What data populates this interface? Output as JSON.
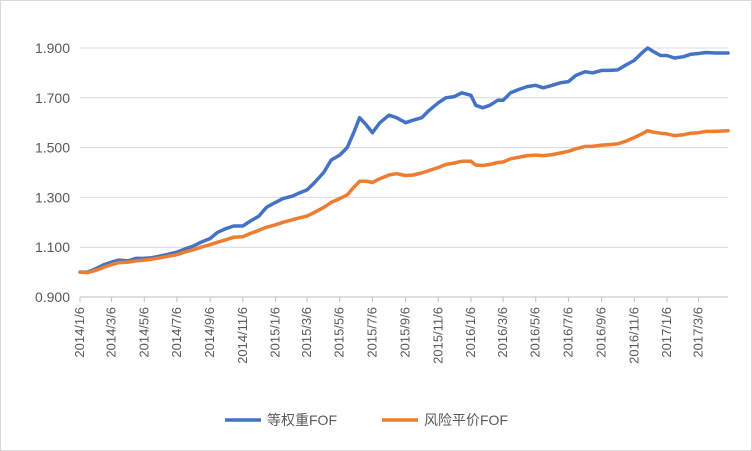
{
  "chart_data": {
    "type": "line",
    "title": "",
    "xlabel": "",
    "ylabel": "",
    "ylim": [
      0.9,
      1.9
    ],
    "y_ticks": [
      "0.900",
      "1.100",
      "1.300",
      "1.500",
      "1.700",
      "1.900"
    ],
    "y_tick_values": [
      0.9,
      1.1,
      1.3,
      1.5,
      1.7,
      1.9
    ],
    "x_tick_labels": [
      "2014/1/6",
      "2014/3/6",
      "2014/5/6",
      "2014/7/6",
      "2014/9/6",
      "2014/11/6",
      "2015/1/6",
      "2015/3/6",
      "2015/5/6",
      "2015/7/6",
      "2015/9/6",
      "2015/11/6",
      "2016/1/6",
      "2016/3/6",
      "2016/5/6",
      "2016/7/6",
      "2016/9/6",
      "2016/11/6",
      "2017/1/6",
      "2017/3/6"
    ],
    "x_range": [
      "2014/1/6",
      "2017/4/30"
    ],
    "grid": "horizontal",
    "legend_position": "bottom",
    "series": [
      {
        "name": "等权重FOF",
        "color": "#4472C4",
        "points": [
          [
            "2014/1/6",
            1.0
          ],
          [
            "2014/1/20",
            1.0
          ],
          [
            "2014/2/6",
            1.015
          ],
          [
            "2014/2/20",
            1.03
          ],
          [
            "2014/3/6",
            1.04
          ],
          [
            "2014/3/20",
            1.048
          ],
          [
            "2014/4/6",
            1.045
          ],
          [
            "2014/4/20",
            1.055
          ],
          [
            "2014/5/6",
            1.055
          ],
          [
            "2014/5/20",
            1.058
          ],
          [
            "2014/6/6",
            1.065
          ],
          [
            "2014/6/20",
            1.072
          ],
          [
            "2014/7/6",
            1.08
          ],
          [
            "2014/7/20",
            1.092
          ],
          [
            "2014/8/6",
            1.105
          ],
          [
            "2014/8/20",
            1.12
          ],
          [
            "2014/9/6",
            1.135
          ],
          [
            "2014/9/20",
            1.16
          ],
          [
            "2014/10/6",
            1.175
          ],
          [
            "2014/10/20",
            1.185
          ],
          [
            "2014/11/6",
            1.185
          ],
          [
            "2014/11/20",
            1.205
          ],
          [
            "2014/12/6",
            1.225
          ],
          [
            "2014/12/20",
            1.26
          ],
          [
            "2015/1/6",
            1.28
          ],
          [
            "2015/1/20",
            1.295
          ],
          [
            "2015/2/6",
            1.305
          ],
          [
            "2015/2/20",
            1.318
          ],
          [
            "2015/3/6",
            1.33
          ],
          [
            "2015/3/20",
            1.36
          ],
          [
            "2015/4/6",
            1.4
          ],
          [
            "2015/4/20",
            1.45
          ],
          [
            "2015/5/6",
            1.47
          ],
          [
            "2015/5/20",
            1.5
          ],
          [
            "2015/6/1",
            1.56
          ],
          [
            "2015/6/12",
            1.62
          ],
          [
            "2015/6/25",
            1.59
          ],
          [
            "2015/7/6",
            1.56
          ],
          [
            "2015/7/20",
            1.6
          ],
          [
            "2015/8/6",
            1.63
          ],
          [
            "2015/8/20",
            1.62
          ],
          [
            "2015/9/6",
            1.6
          ],
          [
            "2015/9/20",
            1.61
          ],
          [
            "2015/10/6",
            1.62
          ],
          [
            "2015/10/20",
            1.65
          ],
          [
            "2015/11/6",
            1.68
          ],
          [
            "2015/11/20",
            1.7
          ],
          [
            "2015/12/6",
            1.705
          ],
          [
            "2015/12/20",
            1.72
          ],
          [
            "2016/1/6",
            1.71
          ],
          [
            "2016/1/15",
            1.67
          ],
          [
            "2016/1/28",
            1.66
          ],
          [
            "2016/2/10",
            1.67
          ],
          [
            "2016/2/25",
            1.69
          ],
          [
            "2016/3/6",
            1.69
          ],
          [
            "2016/3/20",
            1.72
          ],
          [
            "2016/4/6",
            1.735
          ],
          [
            "2016/4/20",
            1.745
          ],
          [
            "2016/5/6",
            1.75
          ],
          [
            "2016/5/20",
            1.74
          ],
          [
            "2016/6/6",
            1.75
          ],
          [
            "2016/6/20",
            1.76
          ],
          [
            "2016/7/6",
            1.765
          ],
          [
            "2016/7/20",
            1.79
          ],
          [
            "2016/8/6",
            1.805
          ],
          [
            "2016/8/20",
            1.8
          ],
          [
            "2016/9/6",
            1.81
          ],
          [
            "2016/9/20",
            1.81
          ],
          [
            "2016/10/6",
            1.812
          ],
          [
            "2016/10/20",
            1.83
          ],
          [
            "2016/11/6",
            1.85
          ],
          [
            "2016/11/20",
            1.88
          ],
          [
            "2016/12/1",
            1.9
          ],
          [
            "2016/12/12",
            1.885
          ],
          [
            "2016/12/25",
            1.87
          ],
          [
            "2017/1/6",
            1.87
          ],
          [
            "2017/1/20",
            1.86
          ],
          [
            "2017/2/6",
            1.865
          ],
          [
            "2017/2/20",
            1.875
          ],
          [
            "2017/3/6",
            1.878
          ],
          [
            "2017/3/20",
            1.882
          ],
          [
            "2017/4/6",
            1.88
          ],
          [
            "2017/4/30",
            1.88
          ]
        ]
      },
      {
        "name": "风险平价FOF",
        "color": "#ED7D31",
        "points": [
          [
            "2014/1/6",
            1.0
          ],
          [
            "2014/1/20",
            0.998
          ],
          [
            "2014/2/6",
            1.008
          ],
          [
            "2014/2/20",
            1.02
          ],
          [
            "2014/3/6",
            1.03
          ],
          [
            "2014/3/20",
            1.038
          ],
          [
            "2014/4/6",
            1.04
          ],
          [
            "2014/4/20",
            1.045
          ],
          [
            "2014/5/6",
            1.048
          ],
          [
            "2014/5/20",
            1.052
          ],
          [
            "2014/6/6",
            1.058
          ],
          [
            "2014/6/20",
            1.064
          ],
          [
            "2014/7/6",
            1.07
          ],
          [
            "2014/7/20",
            1.08
          ],
          [
            "2014/8/6",
            1.09
          ],
          [
            "2014/8/20",
            1.1
          ],
          [
            "2014/9/6",
            1.11
          ],
          [
            "2014/9/20",
            1.12
          ],
          [
            "2014/10/6",
            1.13
          ],
          [
            "2014/10/20",
            1.14
          ],
          [
            "2014/11/6",
            1.142
          ],
          [
            "2014/11/20",
            1.155
          ],
          [
            "2014/12/6",
            1.168
          ],
          [
            "2014/12/20",
            1.18
          ],
          [
            "2015/1/6",
            1.19
          ],
          [
            "2015/1/20",
            1.2
          ],
          [
            "2015/2/6",
            1.21
          ],
          [
            "2015/2/20",
            1.218
          ],
          [
            "2015/3/6",
            1.225
          ],
          [
            "2015/3/20",
            1.24
          ],
          [
            "2015/4/6",
            1.26
          ],
          [
            "2015/4/20",
            1.28
          ],
          [
            "2015/5/6",
            1.295
          ],
          [
            "2015/5/20",
            1.31
          ],
          [
            "2015/6/1",
            1.34
          ],
          [
            "2015/6/12",
            1.365
          ],
          [
            "2015/6/25",
            1.365
          ],
          [
            "2015/7/6",
            1.36
          ],
          [
            "2015/7/20",
            1.375
          ],
          [
            "2015/8/6",
            1.39
          ],
          [
            "2015/8/20",
            1.395
          ],
          [
            "2015/9/6",
            1.388
          ],
          [
            "2015/9/20",
            1.39
          ],
          [
            "2015/10/6",
            1.398
          ],
          [
            "2015/10/20",
            1.408
          ],
          [
            "2015/11/6",
            1.42
          ],
          [
            "2015/11/20",
            1.432
          ],
          [
            "2015/12/6",
            1.438
          ],
          [
            "2015/12/20",
            1.445
          ],
          [
            "2016/1/6",
            1.445
          ],
          [
            "2016/1/15",
            1.43
          ],
          [
            "2016/1/28",
            1.428
          ],
          [
            "2016/2/10",
            1.432
          ],
          [
            "2016/2/25",
            1.44
          ],
          [
            "2016/3/6",
            1.442
          ],
          [
            "2016/3/20",
            1.455
          ],
          [
            "2016/4/6",
            1.462
          ],
          [
            "2016/4/20",
            1.468
          ],
          [
            "2016/5/6",
            1.47
          ],
          [
            "2016/5/20",
            1.468
          ],
          [
            "2016/6/6",
            1.472
          ],
          [
            "2016/6/20",
            1.478
          ],
          [
            "2016/7/6",
            1.485
          ],
          [
            "2016/7/20",
            1.495
          ],
          [
            "2016/8/6",
            1.505
          ],
          [
            "2016/8/20",
            1.505
          ],
          [
            "2016/9/6",
            1.51
          ],
          [
            "2016/9/20",
            1.512
          ],
          [
            "2016/10/6",
            1.515
          ],
          [
            "2016/10/20",
            1.525
          ],
          [
            "2016/11/6",
            1.54
          ],
          [
            "2016/11/20",
            1.555
          ],
          [
            "2016/12/1",
            1.568
          ],
          [
            "2016/12/12",
            1.562
          ],
          [
            "2016/12/25",
            1.558
          ],
          [
            "2017/1/6",
            1.555
          ],
          [
            "2017/1/20",
            1.548
          ],
          [
            "2017/2/6",
            1.552
          ],
          [
            "2017/2/20",
            1.558
          ],
          [
            "2017/3/6",
            1.56
          ],
          [
            "2017/3/20",
            1.565
          ],
          [
            "2017/4/6",
            1.565
          ],
          [
            "2017/4/30",
            1.568
          ]
        ]
      }
    ]
  }
}
